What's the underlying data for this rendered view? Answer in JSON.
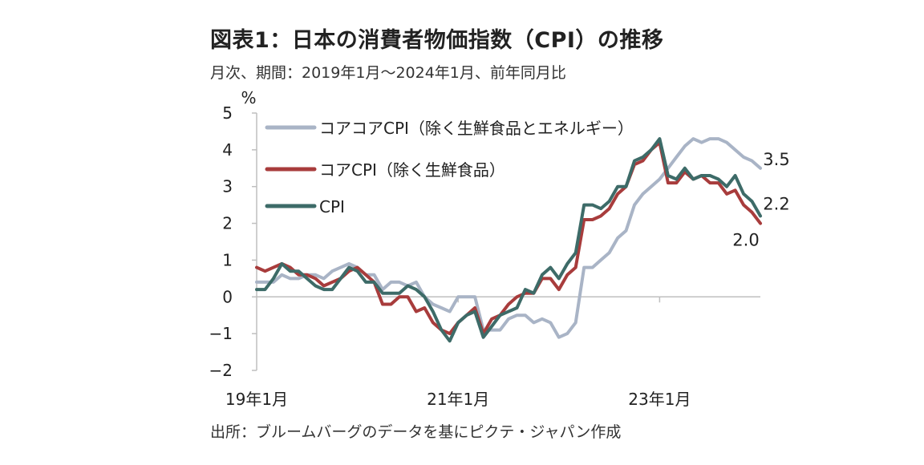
{
  "header": {
    "title": "図表1：日本の消費者物価指数（CPI）の推移",
    "subtitle": "月次、期間：2019年1月～2024年1月、前年同月比"
  },
  "footer": {
    "source": "出所：ブルームバーグのデータを基にピクテ・ジャパン作成"
  },
  "chart_data": {
    "type": "line",
    "yunit": "%",
    "ylim": [
      -2,
      5
    ],
    "yticks": [
      -2,
      -1,
      0,
      1,
      2,
      3,
      4,
      5
    ],
    "x_start": "2019-01",
    "x_end": "2024-01",
    "xtick_labels": [
      {
        "label": "19年1月",
        "month_index": 0
      },
      {
        "label": "21年1月",
        "month_index": 24
      },
      {
        "label": "23年1月",
        "month_index": 48
      }
    ],
    "grid": false,
    "legend_position": "top-left",
    "series": [
      {
        "name": "コアコアCPI（除く生鮮食品とエネルギー）",
        "color": "#a9b4c6",
        "end_label": "3.5",
        "values": [
          0.4,
          0.4,
          0.4,
          0.6,
          0.5,
          0.5,
          0.6,
          0.6,
          0.5,
          0.7,
          0.8,
          0.9,
          0.8,
          0.6,
          0.6,
          0.2,
          0.4,
          0.4,
          0.3,
          0.4,
          0.0,
          -0.2,
          -0.3,
          -0.4,
          0.0,
          0.0,
          0.0,
          -0.9,
          -0.9,
          -0.9,
          -0.6,
          -0.5,
          -0.5,
          -0.7,
          -0.6,
          -0.7,
          -1.1,
          -1.0,
          -0.7,
          0.8,
          0.8,
          1.0,
          1.2,
          1.6,
          1.8,
          2.5,
          2.8,
          3.0,
          3.2,
          3.5,
          3.8,
          4.1,
          4.3,
          4.2,
          4.3,
          4.3,
          4.2,
          4.0,
          3.8,
          3.7,
          3.5
        ]
      },
      {
        "name": "コアCPI（除く生鮮食品）",
        "color": "#a83c3c",
        "end_label": "2.0",
        "values": [
          0.8,
          0.7,
          0.8,
          0.9,
          0.8,
          0.6,
          0.6,
          0.5,
          0.3,
          0.4,
          0.5,
          0.7,
          0.8,
          0.6,
          0.4,
          -0.2,
          -0.2,
          0.0,
          0.0,
          -0.4,
          -0.3,
          -0.7,
          -0.9,
          -1.0,
          -0.7,
          -0.5,
          -0.3,
          -1.0,
          -0.6,
          -0.5,
          -0.2,
          0.0,
          0.1,
          0.1,
          0.5,
          0.5,
          0.2,
          0.6,
          0.8,
          2.1,
          2.1,
          2.2,
          2.4,
          2.8,
          3.0,
          3.6,
          3.7,
          4.0,
          4.2,
          3.1,
          3.1,
          3.4,
          3.2,
          3.3,
          3.1,
          3.1,
          2.8,
          2.9,
          2.5,
          2.3,
          2.0
        ]
      },
      {
        "name": "CPI",
        "color": "#3d6b68",
        "end_label": "2.2",
        "values": [
          0.2,
          0.2,
          0.5,
          0.9,
          0.7,
          0.7,
          0.5,
          0.3,
          0.2,
          0.2,
          0.5,
          0.8,
          0.7,
          0.4,
          0.4,
          0.1,
          0.1,
          0.1,
          0.3,
          0.2,
          0.0,
          -0.4,
          -0.9,
          -1.2,
          -0.7,
          -0.5,
          -0.4,
          -1.1,
          -0.8,
          -0.5,
          -0.4,
          -0.3,
          0.2,
          0.1,
          0.6,
          0.8,
          0.5,
          0.9,
          1.2,
          2.5,
          2.5,
          2.4,
          2.6,
          3.0,
          3.0,
          3.7,
          3.8,
          4.0,
          4.3,
          3.3,
          3.2,
          3.5,
          3.2,
          3.3,
          3.3,
          3.2,
          3.0,
          3.3,
          2.8,
          2.6,
          2.2
        ]
      }
    ]
  }
}
